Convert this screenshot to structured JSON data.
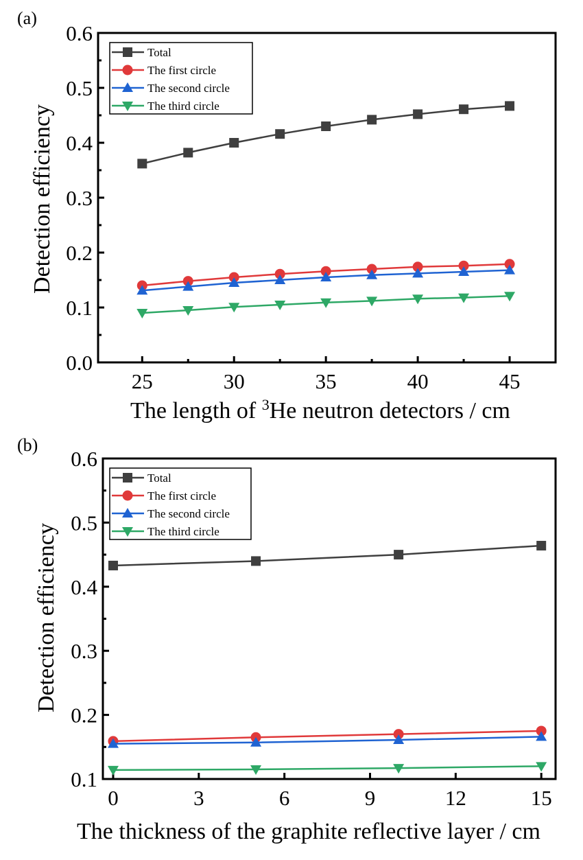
{
  "chart_data": [
    {
      "panel_label": "(a)",
      "type": "line",
      "xlabel_parts": [
        "The length of ",
        "3",
        "He neutron detectors / cm"
      ],
      "ylabel": "Detection efficiency",
      "xlim": [
        22.6,
        47.5
      ],
      "ylim": [
        0.0,
        0.6
      ],
      "xticks": [
        25,
        30,
        35,
        40,
        45
      ],
      "xtick_labels": [
        "25",
        "30",
        "35",
        "40",
        "45"
      ],
      "yticks": [
        0.0,
        0.1,
        0.2,
        0.3,
        0.4,
        0.5,
        0.6
      ],
      "ytick_labels": [
        "0.0",
        "0.1",
        "0.2",
        "0.3",
        "0.4",
        "0.5",
        "0.6"
      ],
      "grid": false,
      "legend_position": "top-left",
      "x": [
        25,
        27.5,
        30,
        32.5,
        35,
        37.5,
        40,
        42.5,
        45
      ],
      "series": [
        {
          "name": "Total",
          "color": "#3f3f3f",
          "marker": "square",
          "values": [
            0.362,
            0.382,
            0.4,
            0.416,
            0.43,
            0.442,
            0.452,
            0.461,
            0.467
          ]
        },
        {
          "name": "The first circle",
          "color": "#e0393a",
          "marker": "circle",
          "values": [
            0.14,
            0.148,
            0.155,
            0.161,
            0.166,
            0.17,
            0.174,
            0.176,
            0.179
          ]
        },
        {
          "name": "The second circle",
          "color": "#1f63d2",
          "marker": "triangle-up",
          "values": [
            0.131,
            0.138,
            0.145,
            0.15,
            0.155,
            0.159,
            0.162,
            0.165,
            0.168
          ]
        },
        {
          "name": "The third circle",
          "color": "#2ea866",
          "marker": "triangle-down",
          "values": [
            0.09,
            0.095,
            0.101,
            0.105,
            0.109,
            0.112,
            0.116,
            0.118,
            0.121
          ]
        }
      ]
    },
    {
      "panel_label": "(b)",
      "type": "line",
      "xlabel_parts": [
        "The thickness of the graphite reflective layer / cm"
      ],
      "ylabel": "Detection efficiency",
      "xlim": [
        -0.36,
        15.5
      ],
      "ylim": [
        0.1,
        0.6
      ],
      "xticks": [
        0,
        3,
        6,
        9,
        12,
        15
      ],
      "xtick_labels": [
        "0",
        "3",
        "6",
        "9",
        "12",
        "15"
      ],
      "yticks": [
        0.1,
        0.2,
        0.3,
        0.4,
        0.5,
        0.6
      ],
      "ytick_labels": [
        "0.1",
        "0.2",
        "0.3",
        "0.4",
        "0.5",
        "0.6"
      ],
      "grid": false,
      "legend_position": "top-left",
      "x": [
        0,
        5,
        10,
        15
      ],
      "series": [
        {
          "name": "Total",
          "color": "#3f3f3f",
          "marker": "square",
          "values": [
            0.433,
            0.44,
            0.45,
            0.464
          ]
        },
        {
          "name": "The first circle",
          "color": "#e0393a",
          "marker": "circle",
          "values": [
            0.159,
            0.165,
            0.17,
            0.175
          ]
        },
        {
          "name": "The second circle",
          "color": "#1f63d2",
          "marker": "triangle-up",
          "values": [
            0.155,
            0.157,
            0.161,
            0.166
          ]
        },
        {
          "name": "The third circle",
          "color": "#2ea866",
          "marker": "triangle-down",
          "values": [
            0.114,
            0.115,
            0.117,
            0.12
          ]
        }
      ]
    }
  ]
}
